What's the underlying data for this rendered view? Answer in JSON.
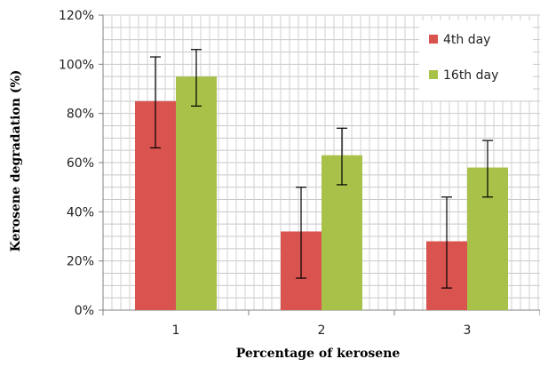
{
  "chart_data": {
    "type": "bar",
    "categories": [
      "1",
      "2",
      "3"
    ],
    "xlabel": "Percentage of kerosene",
    "ylabel": "Kerosene degradation (%)",
    "ylim": [
      0,
      120
    ],
    "yticks": [
      0,
      20,
      40,
      60,
      80,
      100,
      120
    ],
    "ytick_labels": [
      "0%",
      "20%",
      "40%",
      "60%",
      "80%",
      "100%",
      "120%"
    ],
    "grid": true,
    "legend_position": "top-right",
    "series": [
      {
        "name": "4th day",
        "color": "#d9534f",
        "values": [
          85,
          32,
          28
        ],
        "error_low": [
          66,
          13,
          9
        ],
        "error_high": [
          103,
          50,
          46
        ]
      },
      {
        "name": "16th day",
        "color": "#a8c149",
        "values": [
          95,
          63,
          58
        ],
        "error_low": [
          83,
          51,
          46
        ],
        "error_high": [
          106,
          74,
          69
        ]
      }
    ]
  }
}
